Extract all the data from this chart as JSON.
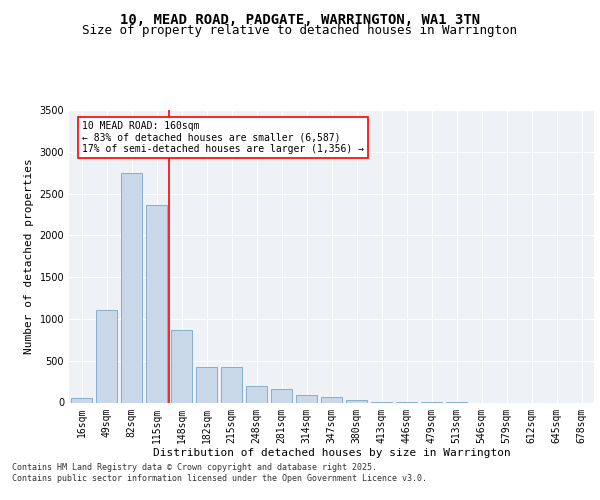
{
  "title_line1": "10, MEAD ROAD, PADGATE, WARRINGTON, WA1 3TN",
  "title_line2": "Size of property relative to detached houses in Warrington",
  "xlabel": "Distribution of detached houses by size in Warrington",
  "ylabel": "Number of detached properties",
  "bar_color": "#c8d8e8",
  "bar_edge_color": "#6699bb",
  "categories": [
    "16sqm",
    "49sqm",
    "82sqm",
    "115sqm",
    "148sqm",
    "182sqm",
    "215sqm",
    "248sqm",
    "281sqm",
    "314sqm",
    "347sqm",
    "380sqm",
    "413sqm",
    "446sqm",
    "479sqm",
    "513sqm",
    "546sqm",
    "579sqm",
    "612sqm",
    "645sqm",
    "678sqm"
  ],
  "values": [
    55,
    1110,
    2750,
    2360,
    870,
    430,
    430,
    200,
    160,
    95,
    65,
    30,
    10,
    5,
    3,
    2,
    0,
    0,
    0,
    0,
    0
  ],
  "ylim": [
    0,
    3500
  ],
  "yticks": [
    0,
    500,
    1000,
    1500,
    2000,
    2500,
    3000,
    3500
  ],
  "annotation_box_text": "10 MEAD ROAD: 160sqm\n← 83% of detached houses are smaller (6,587)\n17% of semi-detached houses are larger (1,356) →",
  "vline_index": 4,
  "background_color": "#eef2f7",
  "grid_color": "#ffffff",
  "footer_line1": "Contains HM Land Registry data © Crown copyright and database right 2025.",
  "footer_line2": "Contains public sector information licensed under the Open Government Licence v3.0.",
  "title_fontsize": 10,
  "subtitle_fontsize": 9,
  "axis_label_fontsize": 8,
  "tick_fontsize": 7
}
